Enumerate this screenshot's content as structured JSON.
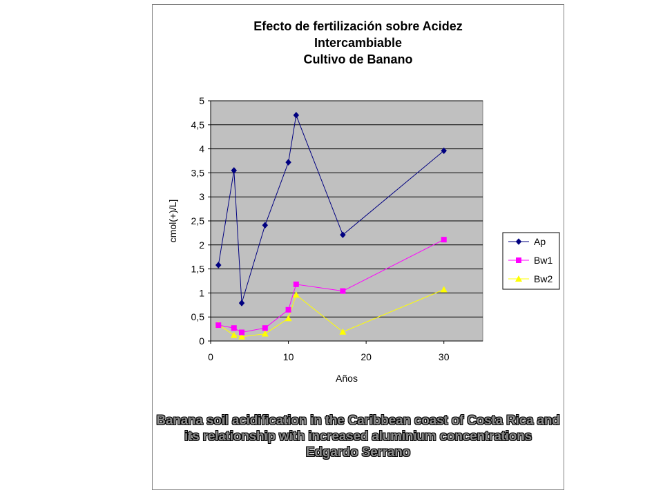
{
  "chart_data": {
    "type": "line",
    "title_lines": [
      "Efecto de fertilización sobre Acidez",
      "Intercambiable",
      "Cultivo de Banano"
    ],
    "xlabel": "Años",
    "ylabel": "cmol(+)/L]",
    "xlim": [
      0,
      35
    ],
    "ylim": [
      0,
      5
    ],
    "x_ticks": [
      "0",
      "10",
      "20",
      "30"
    ],
    "y_ticks": [
      "0",
      "0,5",
      "1",
      "1,5",
      "2",
      "2,5",
      "3",
      "3,5",
      "4",
      "4,5",
      "5"
    ],
    "grid": "horizontal",
    "plot_background": "#c0c0c0",
    "legend_position": "right",
    "series": [
      {
        "name": "Ap",
        "color": "#000080",
        "marker": "diamond",
        "x": [
          1,
          3,
          4,
          7,
          10,
          11,
          17,
          30
        ],
        "y": [
          1.58,
          3.55,
          0.79,
          2.41,
          3.72,
          4.7,
          2.21,
          3.96
        ]
      },
      {
        "name": "Bw1",
        "color": "#ff00ff",
        "marker": "square",
        "x": [
          1,
          3,
          4,
          7,
          10,
          11,
          17,
          30
        ],
        "y": [
          0.33,
          0.27,
          0.18,
          0.27,
          0.65,
          1.18,
          1.04,
          2.11
        ]
      },
      {
        "name": "Bw2",
        "color": "#ffff00",
        "marker": "triangle",
        "x": [
          1,
          3,
          4,
          7,
          10,
          11,
          17,
          30
        ],
        "y": [
          0.34,
          0.12,
          0.09,
          0.15,
          0.47,
          0.96,
          0.19,
          1.07
        ]
      }
    ]
  },
  "caption": {
    "line1": "Banana soil acidification in the Caribbean coast of Costa Rica and",
    "line2": "its relationship with increased aluminium concentrations",
    "line3": "Edgardo Serrano"
  }
}
